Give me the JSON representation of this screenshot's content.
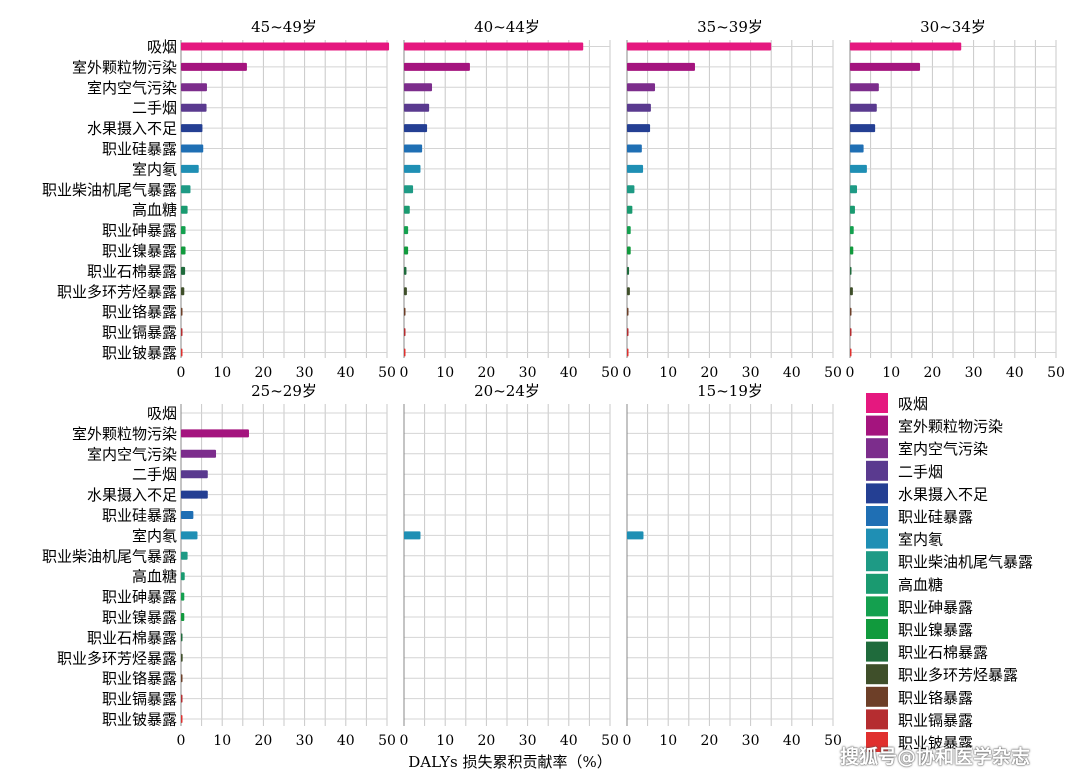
{
  "chart_data": {
    "type": "bar",
    "orientation": "horizontal",
    "xlabel": "DALYs 损失累积贡献率（%）",
    "xlim": [
      0,
      50
    ],
    "xticks": [
      0,
      10,
      20,
      30,
      40,
      50
    ],
    "grid": true,
    "legend_position": "bottom-right",
    "categories": [
      "吸烟",
      "室外颗粒物污染",
      "室内空气污染",
      "二手烟",
      "水果摄入不足",
      "职业硅暴露",
      "室内氡",
      "职业柴油机尾气暴露",
      "高血糖",
      "职业砷暴露",
      "职业镍暴露",
      "职业石棉暴露",
      "职业多环芳烃暴露",
      "职业铬暴露",
      "职业镉暴露",
      "职业铍暴露"
    ],
    "colors": [
      "#e5187f",
      "#a4147e",
      "#7c2d8c",
      "#5a3a8f",
      "#243f93",
      "#1f6fb4",
      "#1f8fb4",
      "#1e9a85",
      "#1a9a70",
      "#14a04f",
      "#119a3d",
      "#1f6b3c",
      "#3f4f2a",
      "#6d3f28",
      "#b52d30",
      "#e0302e"
    ],
    "panels": [
      {
        "title": "45~49岁",
        "values": [
          50.5,
          16,
          6.3,
          6.2,
          5.2,
          5.4,
          4.3,
          2.3,
          1.6,
          1.1,
          1.1,
          1.0,
          0.8,
          0.3,
          0.2,
          0.1
        ]
      },
      {
        "title": "40~44岁",
        "values": [
          43.5,
          16,
          6.8,
          6.1,
          5.6,
          4.4,
          4.0,
          2.2,
          1.4,
          1.0,
          1.0,
          0.6,
          0.7,
          0.3,
          0.2,
          0.1
        ]
      },
      {
        "title": "35~39岁",
        "values": [
          35,
          16.5,
          6.8,
          5.8,
          5.6,
          3.6,
          3.9,
          1.8,
          1.3,
          0.9,
          0.9,
          0.5,
          0.7,
          0.3,
          0.2,
          0.1
        ]
      },
      {
        "title": "30~34岁",
        "values": [
          27,
          17,
          7.0,
          6.5,
          6.1,
          3.3,
          4.1,
          1.7,
          1.2,
          0.9,
          0.8,
          0.3,
          0.7,
          0.2,
          0.1,
          0.1
        ]
      },
      {
        "title": "25~29岁",
        "values": [
          0,
          16.5,
          8.5,
          6.5,
          6.5,
          3.0,
          4.0,
          1.6,
          0.9,
          0.8,
          0.8,
          0.1,
          0.4,
          0.2,
          0.1,
          0.1
        ]
      },
      {
        "title": "20~24岁",
        "values": [
          0,
          0,
          0,
          0,
          0,
          0,
          4.0,
          0,
          0,
          0,
          0,
          0,
          0,
          0,
          0,
          0
        ]
      },
      {
        "title": "15~19岁",
        "values": [
          0,
          0,
          0,
          0,
          0,
          0,
          4.0,
          0,
          0,
          0,
          0,
          0,
          0,
          0,
          0,
          0
        ]
      }
    ]
  },
  "watermark": "搜狐号@协和医学杂志"
}
